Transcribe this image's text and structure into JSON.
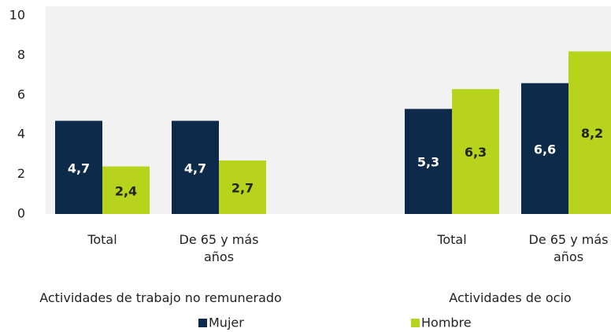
{
  "chart_data": {
    "type": "bar",
    "groups": [
      {
        "name": "Actividades de trabajo no remunerado",
        "categories": [
          "Total",
          "De 65 y más años"
        ]
      },
      {
        "name": "Actividades de ocio",
        "categories": [
          "Total",
          "De 65 y más años"
        ]
      }
    ],
    "series": [
      {
        "name": "Mujer",
        "color": "#0e2a4a",
        "values": [
          4.7,
          4.7,
          5.3,
          6.6
        ],
        "value_labels": [
          "4,7",
          "4,7",
          "5,3",
          "6,6"
        ]
      },
      {
        "name": "Hombre",
        "color": "#b7d31b",
        "values": [
          2.4,
          2.7,
          6.3,
          8.2
        ],
        "value_labels": [
          "2,4",
          "2,7",
          "6,3",
          "8,2"
        ]
      }
    ],
    "ylim": [
      0,
      10
    ],
    "yticks": [
      0,
      2,
      4,
      6,
      8,
      10
    ],
    "legend": "bottom"
  }
}
